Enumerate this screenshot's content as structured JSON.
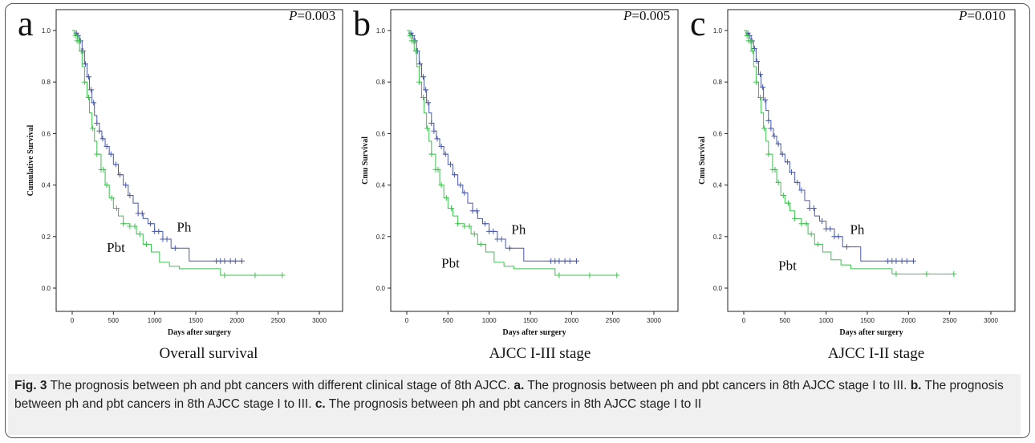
{
  "colors": {
    "ph": "#4a5aa8",
    "pbt": "#3ec14f",
    "axis": "#222222"
  },
  "chart_data": [
    {
      "type": "line",
      "panel_letter": "a",
      "p_label": "P",
      "p_value": "=0.003",
      "subtitle": "Overall survival",
      "xlabel": "Days after surgery",
      "ylabel": "Cumulative Survival",
      "xlim": [
        0,
        3000
      ],
      "ylim": [
        0.0,
        1.0
      ],
      "xticks": [
        "0",
        "500",
        "1000",
        "1500",
        "2000",
        "2500",
        "3000"
      ],
      "yticks": [
        "0.0",
        "0.2",
        "0.4",
        "0.6",
        "0.8",
        "1.0"
      ],
      "series": [
        {
          "name": "Ph",
          "x": [
            0,
            30,
            60,
            90,
            120,
            150,
            180,
            210,
            240,
            270,
            300,
            330,
            360,
            400,
            450,
            500,
            560,
            620,
            680,
            740,
            800,
            860,
            920,
            1000,
            1100,
            1200,
            1420,
            1420,
            2060
          ],
          "y": [
            1.0,
            0.99,
            0.98,
            0.96,
            0.92,
            0.87,
            0.82,
            0.77,
            0.72,
            0.67,
            0.64,
            0.61,
            0.58,
            0.55,
            0.52,
            0.48,
            0.44,
            0.4,
            0.36,
            0.33,
            0.29,
            0.27,
            0.25,
            0.22,
            0.19,
            0.155,
            0.155,
            0.105,
            0.105
          ],
          "censored_x": [
            50,
            70,
            100,
            130,
            160,
            200,
            230,
            260,
            300,
            330,
            370,
            420,
            470,
            530,
            580,
            650,
            700,
            800,
            850,
            950,
            1000,
            1050,
            1100,
            1150,
            1250,
            1750,
            1800,
            1850,
            1920,
            1980,
            2060
          ]
        },
        {
          "name": "Pbt",
          "x": [
            0,
            30,
            60,
            90,
            120,
            150,
            180,
            210,
            240,
            270,
            300,
            350,
            400,
            450,
            500,
            560,
            620,
            700,
            780,
            860,
            960,
            1060,
            1180,
            1300,
            1800,
            2550
          ],
          "y": [
            1.0,
            0.98,
            0.96,
            0.92,
            0.86,
            0.8,
            0.74,
            0.68,
            0.62,
            0.57,
            0.52,
            0.46,
            0.4,
            0.35,
            0.31,
            0.28,
            0.25,
            0.24,
            0.21,
            0.17,
            0.14,
            0.1,
            0.085,
            0.075,
            0.05,
            0.05
          ],
          "censored_x": [
            40,
            60,
            80,
            110,
            150,
            200,
            250,
            300,
            350,
            380,
            420,
            480,
            540,
            620,
            700,
            760,
            820,
            900,
            1850,
            2220,
            2550
          ]
        }
      ],
      "annotations": [
        "Ph",
        "Pbt"
      ]
    },
    {
      "type": "line",
      "panel_letter": "b",
      "p_label": "P",
      "p_value": "=0.005",
      "subtitle": "AJCC I-III stage",
      "xlabel": "Days after surgery",
      "ylabel": "Cmu Survival",
      "xlim": [
        0,
        3000
      ],
      "ylim": [
        0.0,
        1.0
      ],
      "xticks": [
        "0",
        "500",
        "1000",
        "1500",
        "2000",
        "2500",
        "3000"
      ],
      "yticks": [
        "0.0",
        "0.2",
        "0.4",
        "0.6",
        "0.8",
        "1.0"
      ],
      "series": [
        {
          "name": "Ph",
          "x": [
            0,
            30,
            60,
            90,
            120,
            150,
            180,
            210,
            240,
            270,
            300,
            330,
            360,
            400,
            450,
            500,
            560,
            620,
            680,
            740,
            800,
            860,
            920,
            1000,
            1100,
            1200,
            1420,
            1420,
            2060
          ],
          "y": [
            1.0,
            0.99,
            0.98,
            0.96,
            0.92,
            0.87,
            0.82,
            0.77,
            0.72,
            0.68,
            0.64,
            0.61,
            0.58,
            0.55,
            0.52,
            0.48,
            0.44,
            0.4,
            0.37,
            0.33,
            0.3,
            0.27,
            0.25,
            0.22,
            0.19,
            0.155,
            0.155,
            0.105,
            0.105
          ],
          "censored_x": [
            50,
            70,
            100,
            130,
            160,
            200,
            230,
            260,
            300,
            330,
            370,
            420,
            470,
            530,
            580,
            650,
            700,
            800,
            850,
            950,
            1000,
            1050,
            1100,
            1150,
            1250,
            1750,
            1800,
            1850,
            1920,
            1980,
            2060
          ]
        },
        {
          "name": "Pbt",
          "x": [
            0,
            30,
            60,
            90,
            120,
            150,
            180,
            210,
            240,
            270,
            300,
            350,
            400,
            450,
            500,
            560,
            620,
            700,
            780,
            860,
            960,
            1060,
            1180,
            1300,
            1800,
            2550
          ],
          "y": [
            1.0,
            0.98,
            0.96,
            0.92,
            0.86,
            0.8,
            0.74,
            0.68,
            0.62,
            0.57,
            0.52,
            0.46,
            0.4,
            0.35,
            0.31,
            0.28,
            0.25,
            0.24,
            0.21,
            0.17,
            0.14,
            0.1,
            0.085,
            0.075,
            0.05,
            0.05
          ],
          "censored_x": [
            40,
            60,
            80,
            110,
            150,
            200,
            250,
            300,
            350,
            380,
            420,
            480,
            540,
            620,
            700,
            760,
            820,
            900,
            1850,
            2220,
            2550
          ]
        }
      ],
      "annotations": [
        "Ph",
        "Pbt"
      ]
    },
    {
      "type": "line",
      "panel_letter": "c",
      "p_label": "P",
      "p_value": "=0.010",
      "subtitle": "AJCC I-II stage",
      "xlabel": "Days after surgery",
      "ylabel": "Cmu Survival",
      "xlim": [
        0,
        3000
      ],
      "ylim": [
        0.0,
        1.0
      ],
      "xticks": [
        "0",
        "500",
        "1000",
        "1500",
        "2000",
        "2500",
        "3000"
      ],
      "yticks": [
        "0.0",
        "0.2",
        "0.4",
        "0.6",
        "0.8",
        "1.0"
      ],
      "series": [
        {
          "name": "Ph",
          "x": [
            0,
            30,
            60,
            90,
            120,
            150,
            180,
            210,
            240,
            270,
            300,
            330,
            360,
            400,
            450,
            500,
            560,
            620,
            680,
            740,
            800,
            860,
            920,
            1000,
            1100,
            1200,
            1420,
            1420,
            2060
          ],
          "y": [
            1.0,
            0.99,
            0.98,
            0.96,
            0.93,
            0.88,
            0.83,
            0.78,
            0.73,
            0.69,
            0.65,
            0.62,
            0.59,
            0.56,
            0.52,
            0.49,
            0.45,
            0.41,
            0.38,
            0.34,
            0.31,
            0.28,
            0.26,
            0.23,
            0.2,
            0.16,
            0.16,
            0.105,
            0.105
          ],
          "censored_x": [
            50,
            70,
            100,
            130,
            160,
            200,
            230,
            260,
            300,
            330,
            370,
            420,
            470,
            530,
            580,
            650,
            700,
            800,
            850,
            950,
            1000,
            1050,
            1100,
            1150,
            1250,
            1750,
            1800,
            1850,
            1920,
            1980,
            2060
          ]
        },
        {
          "name": "Pbt",
          "x": [
            0,
            30,
            60,
            90,
            120,
            150,
            180,
            210,
            240,
            270,
            300,
            350,
            400,
            450,
            500,
            560,
            620,
            700,
            780,
            860,
            960,
            1060,
            1180,
            1300,
            1800,
            2550
          ],
          "y": [
            1.0,
            0.98,
            0.96,
            0.92,
            0.86,
            0.8,
            0.74,
            0.68,
            0.62,
            0.57,
            0.52,
            0.46,
            0.41,
            0.36,
            0.33,
            0.3,
            0.27,
            0.25,
            0.21,
            0.17,
            0.14,
            0.11,
            0.09,
            0.075,
            0.055,
            0.055
          ],
          "censored_x": [
            40,
            60,
            80,
            110,
            150,
            200,
            250,
            300,
            350,
            380,
            420,
            480,
            540,
            620,
            700,
            760,
            820,
            900,
            1850,
            2220,
            2550
          ]
        }
      ],
      "annotations": [
        "Ph",
        "Pbt"
      ]
    }
  ],
  "caption": {
    "fig_label": "Fig. 3",
    "text": " The prognosis between ph and pbt cancers with different clinical stage of 8th AJCC. ",
    "parts": [
      {
        "label": "a.",
        "text": " The prognosis between ph and pbt cancers in 8th AJCC stage I to III. "
      },
      {
        "label": "b.",
        "text": " The prognosis between ph and pbt cancers in 8th AJCC stage I to III. "
      },
      {
        "label": "c.",
        "text": " The prognosis between ph and pbt cancers in 8th AJCC stage I to II"
      }
    ]
  }
}
